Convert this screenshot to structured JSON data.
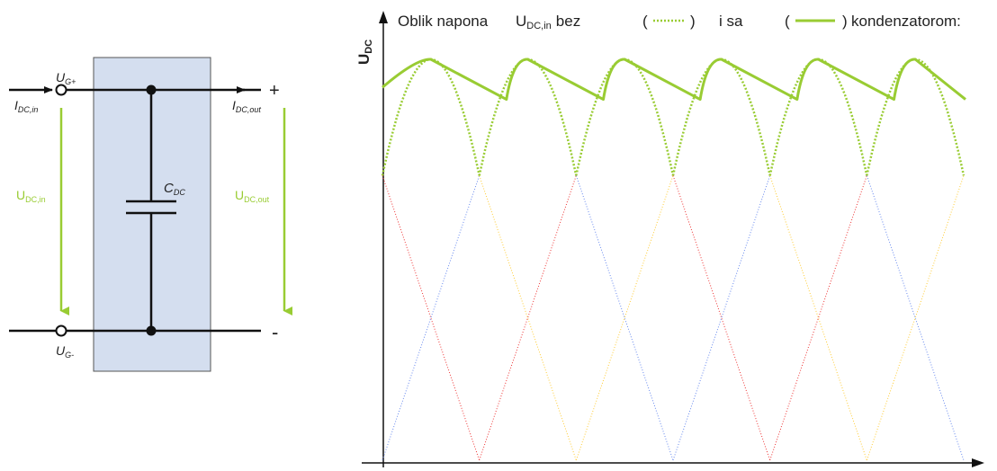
{
  "circuit": {
    "ug_plus": {
      "main": "U",
      "sub": "G+"
    },
    "ug_minus": {
      "main": "U",
      "sub": "G-"
    },
    "i_in": {
      "main": "I",
      "sub": "DC,in"
    },
    "i_out": {
      "main": "I",
      "sub": "DC,out"
    },
    "u_in": {
      "main": "U",
      "sub": "DC,in"
    },
    "u_out": {
      "main": "U",
      "sub": "DC,out"
    },
    "c_dc": {
      "main": "C",
      "sub": "DC"
    },
    "plus": "+",
    "minus": "-"
  },
  "title": {
    "part1": "Oblik napona",
    "u_main": "U",
    "u_sub": "DC,in",
    "bez": "bez",
    "open1": "(",
    "dots_glyph": "······",
    "close1": ")",
    "i_sa": "i sa",
    "open2": "(",
    "close2": ")",
    "kond": "kondenzatorom:"
  },
  "yaxis": {
    "main": "U",
    "sub": "DC"
  },
  "colors": {
    "green": "#99cc33",
    "red": "#ee3333",
    "blue": "#6688ee",
    "yellow": "#ffcc33",
    "capacitor_box": "#d4deef"
  },
  "chart_data": {
    "type": "line",
    "periods": 6,
    "peak_fraction_of_period": 0.5,
    "rectified_min_fraction_of_peak": 0.71,
    "filtered_min_fraction_of_peak": 0.9,
    "series": [
      {
        "color": "red"
      },
      {
        "color": "blue"
      },
      {
        "color": "yellow"
      }
    ]
  }
}
